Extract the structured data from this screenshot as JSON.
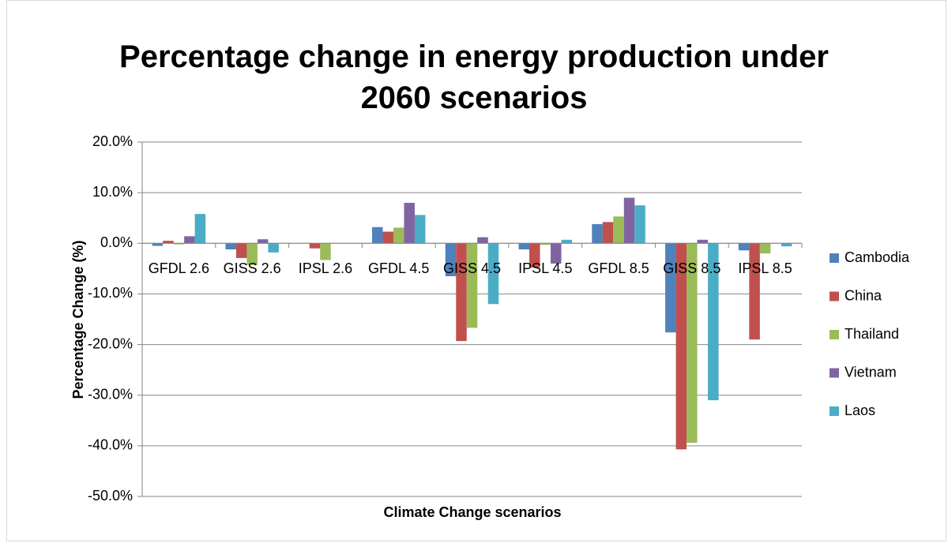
{
  "chart_data": {
    "type": "bar",
    "title": "Percentage change in energy production under 2060 scenarios",
    "x_label": "Climate Change scenarios",
    "y_label": "Percentage Change (%)",
    "categories": [
      "GFDL 2.6",
      "GISS 2.6",
      "IPSL 2.6",
      "GFDL 4.5",
      "GISS 4.5",
      "IPSL 4.5",
      "GFDL 8.5",
      "GISS 8.5",
      "IPSL 8.5"
    ],
    "series": [
      {
        "name": "Cambodia",
        "color": "#4f81bd",
        "values": [
          -0.5,
          -1.2,
          0,
          3.2,
          -6.5,
          -1.2,
          3.8,
          -17.6,
          -1.4
        ]
      },
      {
        "name": "China",
        "color": "#c0504d",
        "values": [
          0.5,
          -2.9,
          -1.0,
          2.3,
          -19.3,
          -4.8,
          4.2,
          -40.7,
          -19.0
        ]
      },
      {
        "name": "Thailand",
        "color": "#9bbb59",
        "values": [
          -0.2,
          -4.3,
          -3.3,
          3.1,
          -16.7,
          -0.3,
          5.3,
          -39.4,
          -2.0
        ]
      },
      {
        "name": "Vietnam",
        "color": "#8064a2",
        "values": [
          1.4,
          0.8,
          0,
          8.0,
          1.2,
          -4.0,
          9.0,
          0.7,
          0
        ]
      },
      {
        "name": "Laos",
        "color": "#4bacc6",
        "values": [
          5.8,
          -1.8,
          0,
          5.6,
          -12.0,
          0.7,
          7.5,
          -31.0,
          -0.6
        ]
      }
    ],
    "ylim": [
      -50,
      20
    ],
    "yticks": [
      {
        "value": -50,
        "label": "-50.0%"
      },
      {
        "value": -40,
        "label": "-40.0%"
      },
      {
        "value": -30,
        "label": "-30.0%"
      },
      {
        "value": -20,
        "label": "-20.0%"
      },
      {
        "value": -10,
        "label": "-10.0%"
      },
      {
        "value": 0,
        "label": "0.0%"
      },
      {
        "value": 10,
        "label": "10.0%"
      },
      {
        "value": 20,
        "label": "20.0%"
      }
    ],
    "grid": true,
    "legend": "right"
  }
}
